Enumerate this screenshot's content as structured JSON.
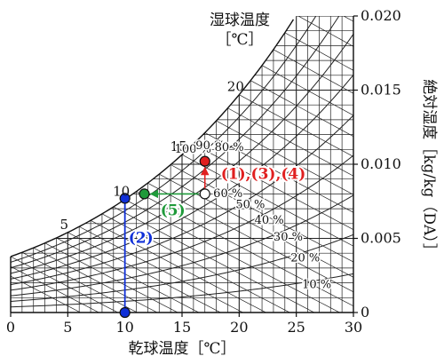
{
  "chart_data": {
    "type": "psychrometric",
    "xlabel": "乾球温度［℃］",
    "ylabel": "絶対湿度［kg/kg（DA）］",
    "wet_bulb_label": "湿球温度",
    "wet_bulb_unit": "［℃］",
    "x_ticks": [
      "0",
      "5",
      "10",
      "15",
      "20",
      "25",
      "30"
    ],
    "y_ticks": [
      "0",
      "0.005",
      "0.010",
      "0.015",
      "0.020"
    ],
    "xlim": [
      0,
      30
    ],
    "ylim": [
      0,
      0.02
    ],
    "wet_bulb_labels": [
      "5",
      "10",
      "15",
      "20"
    ],
    "rh_labels": [
      "100 %",
      "90 %",
      "80 %",
      "60 %",
      "50 %",
      "40 %",
      "30 %",
      "20 %",
      "10 %"
    ],
    "points": [
      {
        "name": "state-red",
        "t": 17.0,
        "x": 0.0102,
        "color": "#e02020"
      },
      {
        "name": "state-white",
        "t": 17.0,
        "x": 0.008,
        "color": "#ffffff"
      },
      {
        "name": "state-green",
        "t": 11.7,
        "x": 0.008,
        "color": "#1f9a3a"
      },
      {
        "name": "state-blue-top",
        "t": 10.0,
        "x": 0.0077,
        "color": "#1030d8"
      },
      {
        "name": "state-blue-bottom",
        "t": 10.0,
        "x": 0.0,
        "color": "#1030d8"
      }
    ],
    "annotations": [
      {
        "text": "(1),(3),(4)",
        "color": "#e02020"
      },
      {
        "text": "(5)",
        "color": "#1f9a3a"
      },
      {
        "text": "(2)",
        "color": "#1030d8"
      }
    ]
  }
}
